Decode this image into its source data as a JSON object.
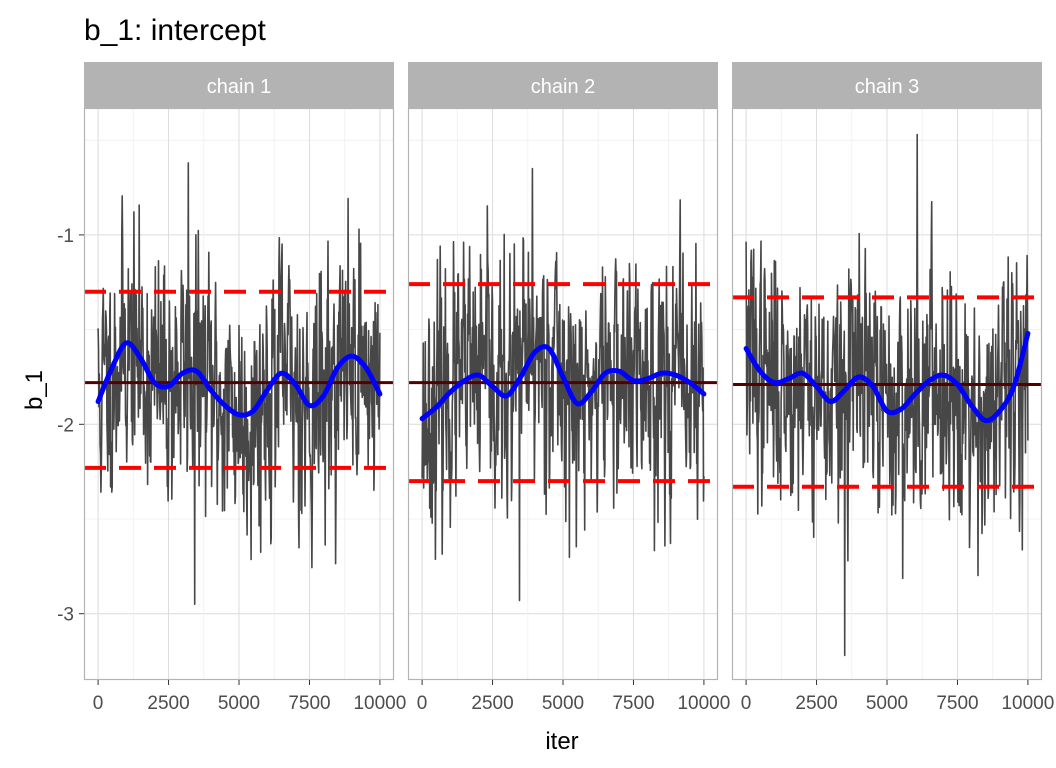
{
  "chart_data": {
    "type": "line",
    "title": "b_1: intercept",
    "xlabel": "iter",
    "ylabel": "b_1",
    "xlim": [
      -500,
      10500
    ],
    "ylim": [
      -3.35,
      -0.33
    ],
    "xticks": [
      0,
      2500,
      5000,
      7500,
      10000
    ],
    "xtick_labels": [
      "0",
      "2500",
      "5000",
      "7500",
      "10000"
    ],
    "yticks": [
      -3,
      -2,
      -1
    ],
    "ytick_labels": [
      "-3",
      "-2",
      "-1"
    ],
    "grid": true,
    "facets": [
      {
        "label": "chain 1",
        "mean": -1.78,
        "lower": -2.23,
        "upper": -1.3,
        "trace_seed": 11,
        "trace_min": -2.95,
        "trace_max": -0.62,
        "smooth": {
          "x": [
            0,
            500,
            1000,
            1500,
            2000,
            2500,
            3000,
            3500,
            4000,
            4500,
            5000,
            5500,
            6000,
            6500,
            7000,
            7500,
            8000,
            8500,
            9000,
            9500,
            10000
          ],
          "y": [
            -1.88,
            -1.7,
            -1.57,
            -1.65,
            -1.78,
            -1.8,
            -1.73,
            -1.72,
            -1.82,
            -1.9,
            -1.95,
            -1.93,
            -1.82,
            -1.73,
            -1.79,
            -1.9,
            -1.85,
            -1.7,
            -1.64,
            -1.7,
            -1.84
          ]
        }
      },
      {
        "label": "chain 2",
        "mean": -1.78,
        "lower": -2.3,
        "upper": -1.26,
        "trace_seed": 23,
        "trace_min": -2.93,
        "trace_max": -0.65,
        "smooth": {
          "x": [
            0,
            500,
            1000,
            1500,
            2000,
            2500,
            3000,
            3500,
            4000,
            4500,
            5000,
            5500,
            6000,
            6500,
            7000,
            7500,
            8000,
            8500,
            9000,
            9500,
            10000
          ],
          "y": [
            -1.97,
            -1.91,
            -1.83,
            -1.77,
            -1.74,
            -1.8,
            -1.85,
            -1.75,
            -1.62,
            -1.6,
            -1.75,
            -1.89,
            -1.83,
            -1.73,
            -1.72,
            -1.77,
            -1.76,
            -1.73,
            -1.74,
            -1.78,
            -1.84
          ]
        }
      },
      {
        "label": "chain 3",
        "mean": -1.79,
        "lower": -2.33,
        "upper": -1.33,
        "trace_seed": 37,
        "trace_min": -3.22,
        "trace_max": -0.47,
        "smooth": {
          "x": [
            0,
            500,
            1000,
            1500,
            2000,
            2500,
            3000,
            3500,
            4000,
            4500,
            5000,
            5500,
            6000,
            6500,
            7000,
            7500,
            8000,
            8500,
            9000,
            9500,
            10000
          ],
          "y": [
            -1.6,
            -1.72,
            -1.78,
            -1.76,
            -1.73,
            -1.8,
            -1.88,
            -1.82,
            -1.75,
            -1.8,
            -1.93,
            -1.92,
            -1.84,
            -1.77,
            -1.74,
            -1.79,
            -1.9,
            -1.98,
            -1.93,
            -1.8,
            -1.52
          ]
        }
      }
    ],
    "colors": {
      "trace": "#474747",
      "smooth": "#0000ff",
      "mean": "#550000",
      "interval": "#ff0000",
      "strip_bg": "#b3b3b3",
      "grid_major": "#dcdcdc",
      "grid_minor": "#efefef",
      "panel_border": "#b3b3b3"
    }
  }
}
